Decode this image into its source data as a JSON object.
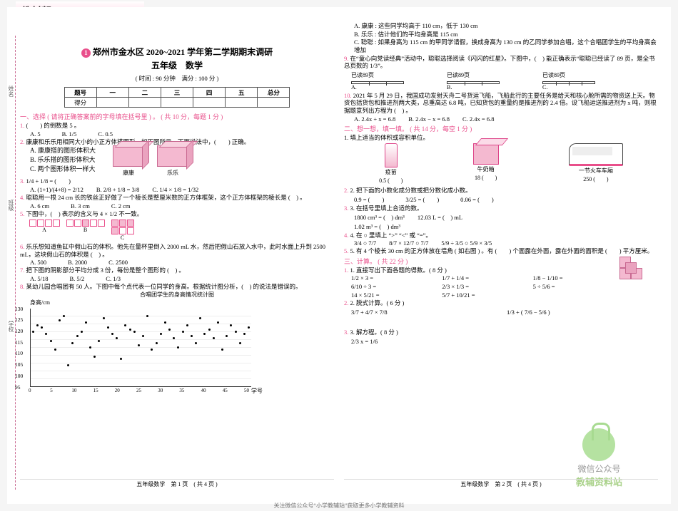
{
  "brand": "教材帮",
  "province_tag": "河南BSD",
  "badge_no": "1",
  "title_line1": "郑州市金水区 2020~2021 学年第二学期期末调研",
  "title_line2": "五年级　数学",
  "meta": "( 时间 : 90 分钟　满分 : 100 分 )",
  "score_headers": [
    "题号",
    "一",
    "二",
    "三",
    "四",
    "五",
    "总分"
  ],
  "score_row_label": "得分",
  "sec1": "一、选择 ( 请将正确答案前的字母填在括号里 ) 。 ( 共 10 分，每题 1 分 )",
  "q1": {
    "text": "(　　) 的倒数是 5 。",
    "opts": [
      "A. 5",
      "B. 1/5",
      "C. 0.5"
    ]
  },
  "q2": {
    "text": "康康和乐乐用相同大小的小正方体搭图形，如下图所示。下面说法中，(　　) 正确。",
    "subs": [
      "A. 康康搭的图形体积大",
      "B. 乐乐搭的图形体积大",
      "C. 两个图形体积一样大"
    ],
    "label_a": "康康",
    "label_b": "乐乐"
  },
  "q3": {
    "text": "1/4 + 1/8 = (　　)",
    "opts": [
      "A. (1+1)/(4+8) = 2/12",
      "B. 2/8 + 1/8 = 3/8",
      "C. 1/4 × 1/8 = 1/32"
    ]
  },
  "q4": {
    "text": "聪聪用一根 24 cm 长的铁丝正好做了一个棱长是整厘米数的正方体框架，这个正方体框架的棱长是 (　) 。",
    "opts": [
      "A. 6 cm",
      "B. 3 cm",
      "C. 2 cm"
    ]
  },
  "q5": {
    "text": "下图中，(　) 表示的含义与 4 × 1/2 不一致。",
    "patterns": [
      "A",
      "B",
      "C"
    ]
  },
  "q6": {
    "text": "乐乐想知道鱼缸中假山石的体积。他先在量杯里倒入 2000 mL 水，然后把假山石放入水中，此时水面上升到 2500 mL，这块假山石的体积是 (　) 。",
    "opts": [
      "A. 500",
      "B. 2000",
      "C. 2500"
    ]
  },
  "q7": {
    "text": "把下图的阴影部分平均分成 3 份，每份是整个图形的 (　) 。",
    "opts": [
      "A. 5/18",
      "B. 5/2",
      "C. 1/3"
    ]
  },
  "q8": {
    "text": "某幼儿园合唱团有 50 人。下图中每个点代表一位同学的身高。根据统计图分析，(　) 的说法是错误的。",
    "chart_title": "合唱团学生的身高情况统计图",
    "ylabel": "身高/cm",
    "yticks": [
      "95",
      "100",
      "105",
      "110",
      "115",
      "120",
      "125",
      "130"
    ],
    "xlabel": "学号"
  },
  "q8_opts": [
    "A. 康康 : 这些同学均高于 110 cm，低于 130 cm",
    "B. 乐乐 : 估计他们的平均身高是 115 cm",
    "C. 聪聪 : 如果身高为 115 cm 的甲同学请假，换成身高为 130 cm 的乙同学参加合唱，这个合唱团学生的平均身高会增加"
  ],
  "q9": {
    "text": "在“童心向党读经典”活动中，聪聪选择阅读《闪闪的红星》。下图中，(　) 能正确表示“聪聪已经读了 89 页，是全书总页数的 1/3”。",
    "labels": [
      "已读89页",
      "已读89页",
      "已读89页"
    ],
    "opts": [
      "A.",
      "B.",
      "C."
    ]
  },
  "q10": {
    "text": "2021 年 5 月 29 日，我国成功发射天舟二号货运飞船，飞船此行的主要任务是给天和核心舱所需的物资送上天。物资包括货包和推进剂两大类，总重高达 6.8 吨，已知货包的重量约是推进剂的 2.4 倍。设飞船运送推进剂为 x 吨，则根据题意列出方程为 (　) 。",
    "opts": [
      "A. 2.4x + x = 6.8",
      "B. 2.4x − x = 6.8",
      "C. 2.4x = 6.8"
    ]
  },
  "sec2": "二、想一想，填一填。 ( 共 14 分，每空 1 分 )",
  "fill1": "1. 填上适当的体积或容积单位。",
  "items": [
    {
      "name": "vaccine",
      "label": "疫苗",
      "val": "0.5 (　　)"
    },
    {
      "name": "milk",
      "label": "牛奶箱",
      "val": "18 (　　)"
    },
    {
      "name": "train",
      "label": "一节火车车厢",
      "val": "250 (　　)"
    }
  ],
  "fill2": "2. 把下面的小数化成分数或把分数化成小数。",
  "fill2_items": [
    "0.9 = (　　)",
    "3/25 = (　　)",
    "0.06 = (　　)"
  ],
  "fill3": "3. 在括号里填上合适的数。",
  "fill3_items": [
    "1800 cm³ = (　) dm³",
    "12.03 L = (　) mL",
    "1.02 m³ = (　) dm³"
  ],
  "fill4": "4. 在 ○ 里填上 “>” “<” 或 “=”。",
  "fill4_items": [
    "3/4 ○ 7/7",
    "8/7 × 12/7 ○ 7/7",
    "5/9 ÷ 3/5 ○ 5/9 × 3/5"
  ],
  "fill5": "5. 有 4 个棱长 30 cm 的正方体放在墙角 ( 如右图 ) 。有 (　　) 个面露在外面，露在外面的面积是 (　　) 平方厘米。",
  "sec3": "三、计算。 ( 共 22 分 )",
  "calc1": "1. 直接写出下面各题的得数。( 8 分 )",
  "calc1_items": [
    "1/2 × 3 =",
    "1/7 + 1/4 =",
    "1/8 − 1/10 =",
    "6/10 ÷ 3 =",
    "2/3 × 1/3 =",
    "5 ÷ 5/6 =",
    "14 × 5/21 =",
    "5/7 + 10/21 ="
  ],
  "calc2": "2. 脱式计算。( 6 分 )",
  "calc2_items": [
    "3/7 + 4/7 × 7/8",
    "1/3 + ( 7/6 − 5/6 )"
  ],
  "calc3": "3. 解方程。( 8 分 )",
  "calc3_items": [
    "2/3 x = 1/6"
  ],
  "wm1": "微信公众号",
  "wm2": "教辅资料站",
  "foot_left": "五年级数学　第 1 页　( 共 4 页 )",
  "foot_right": "五年级数学　第 2 页　( 共 4 页 )",
  "foot_note": "关注微信公众号“小学教辅站”获取更多小学教辅资料",
  "chart": {
    "y_min": 95,
    "y_max": 130,
    "y_step": 5,
    "points": [
      120,
      123,
      122,
      119,
      116,
      112,
      125,
      127,
      105,
      115,
      118,
      120,
      124,
      113,
      109,
      116,
      126,
      122,
      119,
      117,
      108,
      123,
      121,
      120,
      114,
      118,
      127,
      112,
      115,
      119,
      124,
      121,
      117,
      113,
      120,
      123,
      118,
      115,
      126,
      119,
      121,
      117,
      124,
      112,
      118,
      123,
      120,
      115,
      119,
      122
    ]
  },
  "binding_labels": [
    "姓名",
    "班级",
    "学校"
  ],
  "colors": {
    "accent": "#e94f8b",
    "pink": "#f4b9d0",
    "pinkborder": "#c96a92",
    "green": "#b5e2a1"
  }
}
